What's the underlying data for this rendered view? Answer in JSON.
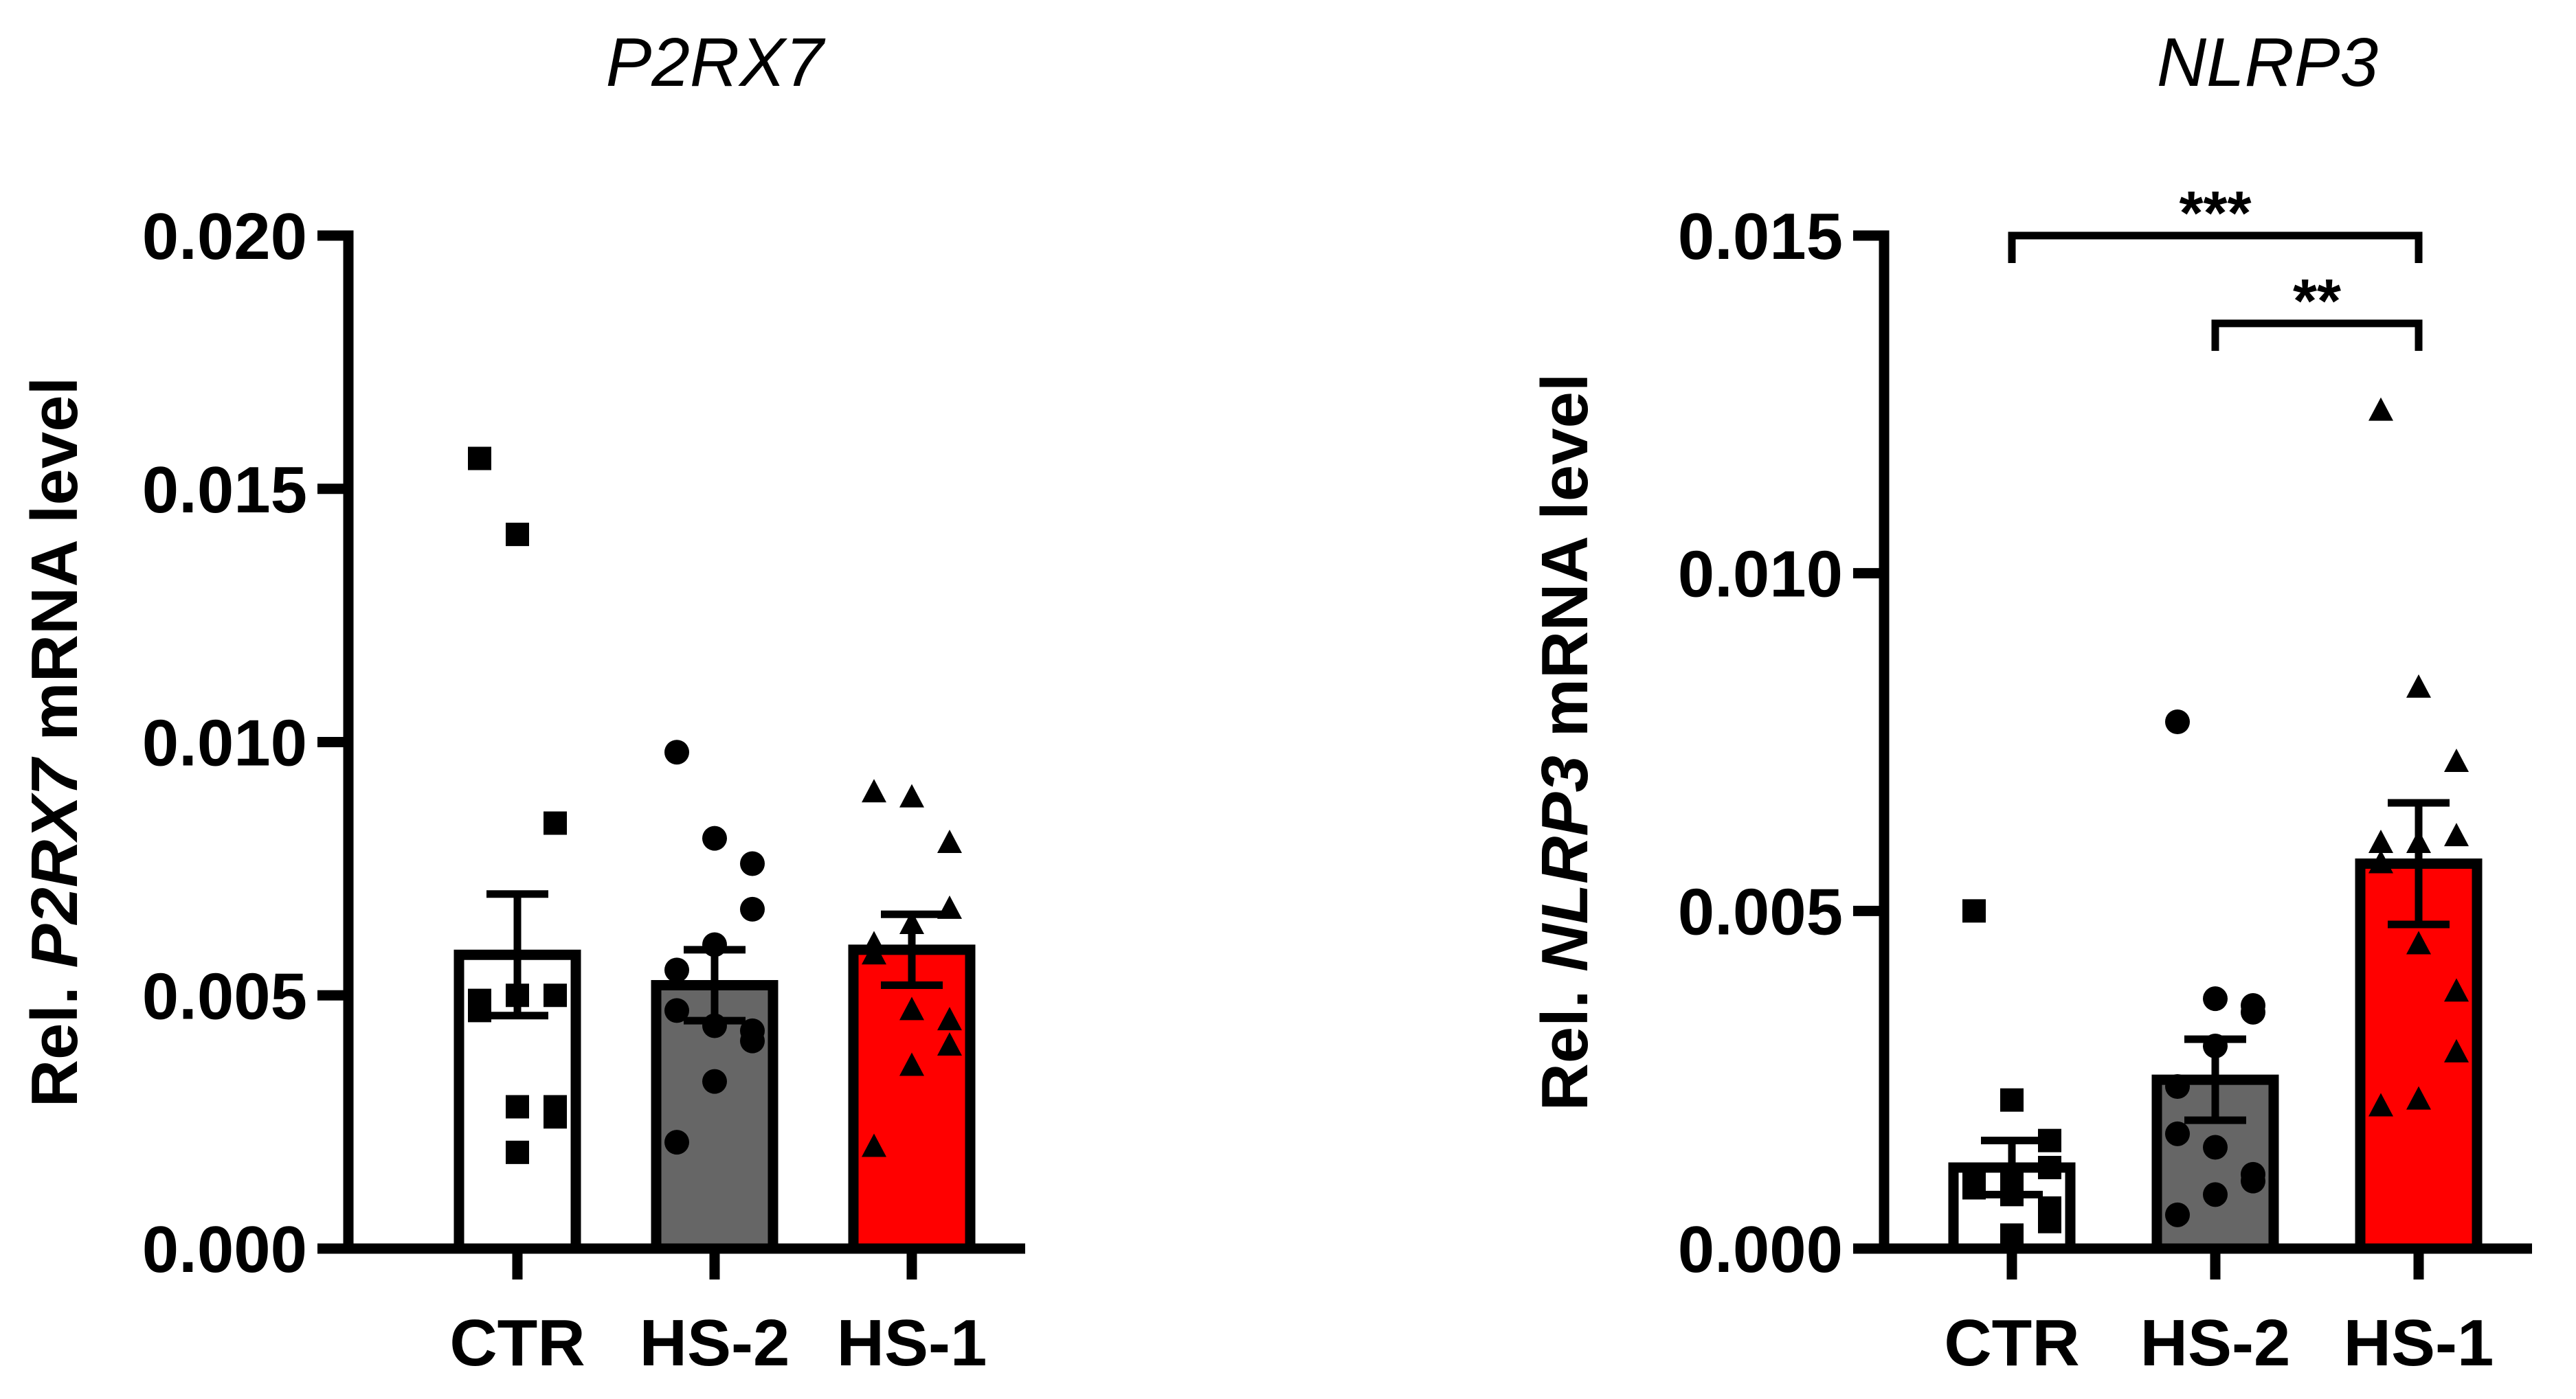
{
  "chart_data": [
    {
      "type": "bar",
      "title": "P2RX7",
      "ylabel": {
        "prefix": "Rel. ",
        "gene": "P2RX7",
        "suffix": " mRNA level"
      },
      "ylim": [
        0,
        0.02
      ],
      "yticks": [
        "0.000",
        "0.005",
        "0.010",
        "0.015",
        "0.020"
      ],
      "categories": [
        "CTR",
        "HS-2",
        "HS-1"
      ],
      "means": [
        0.0058,
        0.0052,
        0.0059
      ],
      "sem": [
        0.0012,
        0.0007,
        0.0007
      ],
      "bar_colors": [
        "#ffffff",
        "#666666",
        "#ff0000"
      ],
      "markers": [
        "square",
        "circle",
        "triangle"
      ],
      "points": [
        [
          0.0156,
          0.0141,
          0.0084,
          0.005,
          0.005,
          0.0049,
          0.0047,
          0.0028,
          0.0028,
          0.0026,
          0.0019
        ],
        [
          0.0098,
          0.0081,
          0.0076,
          0.0067,
          0.006,
          0.0055,
          0.0047,
          0.0044,
          0.0043,
          0.0041,
          0.0033,
          0.0021
        ],
        [
          0.009,
          0.0089,
          0.008,
          0.0067,
          0.0064,
          0.006,
          0.0058,
          0.0047,
          0.0045,
          0.004,
          0.0036,
          0.002
        ]
      ],
      "significance": []
    },
    {
      "type": "bar",
      "title": "NLRP3",
      "ylabel": {
        "prefix": "Rel. ",
        "gene": "NLRP3",
        "suffix": " mRNA level"
      },
      "ylim": [
        0,
        0.015
      ],
      "yticks": [
        "0.000",
        "0.005",
        "0.010",
        "0.015"
      ],
      "categories": [
        "CTR",
        "HS-2",
        "HS-1"
      ],
      "means": [
        0.0012,
        0.0025,
        0.0057
      ],
      "sem": [
        0.0004,
        0.0006,
        0.0009
      ],
      "bar_colors": [
        "#ffffff",
        "#666666",
        "#ff0000"
      ],
      "markers": [
        "square",
        "circle",
        "triangle"
      ],
      "points": [
        [
          0.005,
          0.0022,
          0.0016,
          0.0012,
          0.0011,
          0.001,
          0.0009,
          0.0008,
          0.0006,
          0.0004,
          0.0002
        ],
        [
          0.0078,
          0.0037,
          0.0036,
          0.0035,
          0.003,
          0.0024,
          0.0017,
          0.0015,
          0.0011,
          0.001,
          0.0008,
          0.0005
        ],
        [
          0.0124,
          0.0083,
          0.0072,
          0.0061,
          0.006,
          0.0057,
          0.006,
          0.0045,
          0.0038,
          0.0029,
          0.0022,
          0.0021
        ]
      ],
      "significance": [
        {
          "from": 0,
          "to": 2,
          "label": "***",
          "y": 0.015
        },
        {
          "from": 1,
          "to": 2,
          "label": "**",
          "y": 0.0137
        }
      ]
    }
  ]
}
